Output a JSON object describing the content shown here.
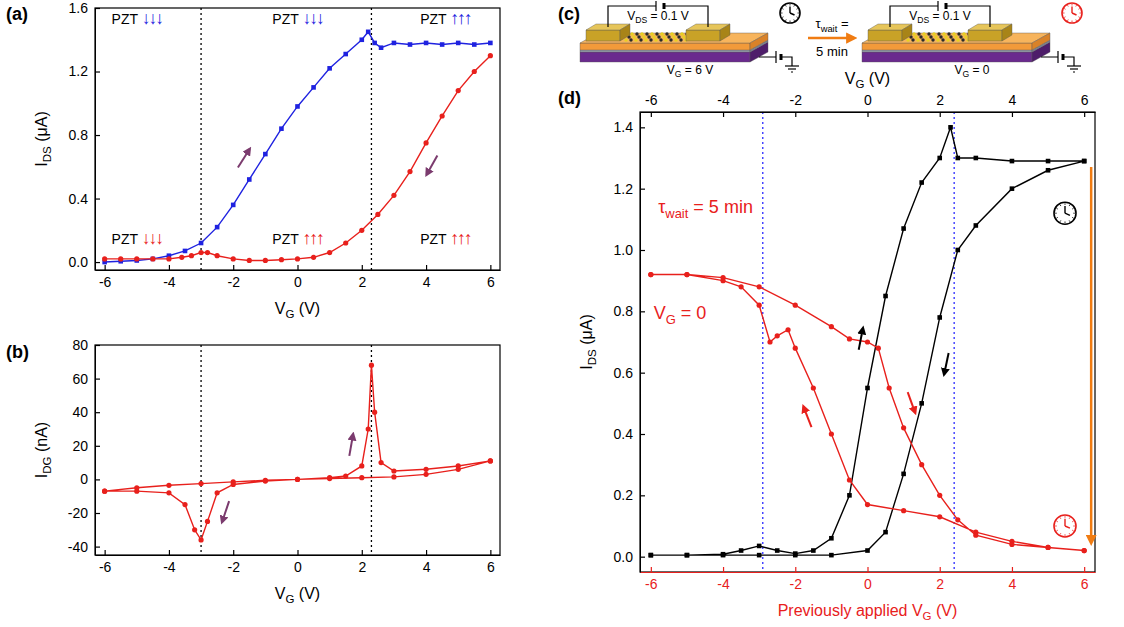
{
  "chart_data": [
    {
      "type": "line",
      "panel": "(a)",
      "xlabel": "VG (V)",
      "ylabel": "IDS (μA)",
      "xlim": [
        -6.3,
        6.3
      ],
      "xticks": [
        -6,
        -4,
        -2,
        0,
        2,
        4,
        6
      ],
      "ylim": [
        -0.05,
        1.6
      ],
      "yticks": [
        {
          "value": 0,
          "label": "0.0"
        },
        {
          "value": 0.4,
          "label": "0.4"
        },
        {
          "value": 0.8,
          "label": "0.8"
        },
        {
          "value": 1.2,
          "label": "1.2"
        },
        {
          "value": 1.6,
          "label": "1.6"
        }
      ],
      "vlines": {
        "x": [
          -3,
          2.3
        ],
        "color": "#000000"
      },
      "series": [
        {
          "color": "#1f22e0",
          "marker": "square",
          "x": [
            -6,
            -5.5,
            -5,
            -4.5,
            -4,
            -3.5,
            -3,
            -2.5,
            -2,
            -1.5,
            -1,
            -0.5,
            0,
            0.5,
            1,
            1.5,
            2,
            2.2,
            2.4,
            2.6,
            3,
            3.5,
            4,
            4.5,
            5,
            5.5,
            6
          ],
          "values": [
            0.0,
            0.005,
            0.01,
            0.02,
            0.04,
            0.07,
            0.12,
            0.22,
            0.36,
            0.52,
            0.68,
            0.84,
            0.98,
            1.1,
            1.22,
            1.31,
            1.4,
            1.45,
            1.38,
            1.35,
            1.38,
            1.37,
            1.38,
            1.37,
            1.38,
            1.37,
            1.38
          ]
        },
        {
          "color": "#e8201c",
          "marker": "circle",
          "x": [
            6,
            5.5,
            5,
            4.5,
            4,
            3.5,
            3,
            2.5,
            2,
            1.5,
            1,
            0.5,
            0,
            -0.5,
            -1,
            -1.5,
            -2,
            -2.5,
            -2.8,
            -3,
            -3.3,
            -3.6,
            -4,
            -4.5,
            -5,
            -5.5,
            -6
          ],
          "values": [
            1.3,
            1.2,
            1.08,
            0.92,
            0.75,
            0.57,
            0.42,
            0.3,
            0.2,
            0.12,
            0.06,
            0.03,
            0.02,
            0.015,
            0.01,
            0.01,
            0.02,
            0.04,
            0.06,
            0.06,
            0.04,
            0.03,
            0.02,
            0.02,
            0.02,
            0.02,
            0.02
          ]
        }
      ],
      "annotations": [
        {
          "text": "PZT ↓↓↓",
          "color": "#1f22e0"
        },
        {
          "text": "PZT ↓↓↓",
          "color": "#1f22e0"
        },
        {
          "text": "PZT ↑↑↑",
          "color": "#1f22e0"
        },
        {
          "text": "PZT ↓↓↓",
          "color": "#e8201c"
        },
        {
          "text": "PZT ↑↑↑",
          "color": "#e8201c"
        },
        {
          "text": "PZT ↑↑↑",
          "color": "#e8201c"
        }
      ]
    },
    {
      "type": "line",
      "panel": "(b)",
      "xlabel": "VG (V)",
      "ylabel": "IDG (nA)",
      "xlim": [
        -6.3,
        6.3
      ],
      "xticks": [
        -6,
        -4,
        -2,
        0,
        2,
        4,
        6
      ],
      "ylim": [
        -45,
        80
      ],
      "yticks": [
        -40,
        -20,
        0,
        20,
        40,
        60,
        80
      ],
      "vlines": {
        "x": [
          -3,
          2.3
        ],
        "color": "#000000"
      },
      "series": [
        {
          "color": "#e8201c",
          "marker": "circle",
          "x": [
            -6,
            -5,
            -4,
            -3,
            -2,
            -1,
            0,
            1,
            1.5,
            2,
            2.2,
            2.3,
            2.4,
            2.6,
            3,
            4,
            5,
            6,
            6,
            5,
            4,
            3,
            2,
            1,
            0,
            -1,
            -2,
            -2.5,
            -2.8,
            -3,
            -3.2,
            -3.5,
            -4,
            -5,
            -6
          ],
          "values": [
            -7,
            -5,
            -3.5,
            -2.5,
            -1.5,
            -0.5,
            0,
            1,
            2,
            8,
            30,
            68,
            40,
            10,
            5,
            6,
            8,
            11,
            11,
            6,
            3,
            1.5,
            1,
            0.5,
            0,
            -1,
            -3,
            -8,
            -25,
            -36,
            -30,
            -15,
            -8,
            -7,
            -7
          ]
        }
      ]
    },
    {
      "type": "line",
      "panel": "(d)",
      "xlabel": "Previously applied VG (V)",
      "x2label": "VG (V)",
      "ylabel": "IDS (μA)",
      "xlim": [
        -6.3,
        6.3
      ],
      "xticks": [
        -6,
        -4,
        -2,
        0,
        2,
        4,
        6
      ],
      "x2lim": [
        -6.3,
        6.3
      ],
      "x2ticks": [
        -6,
        -4,
        -2,
        0,
        2,
        4,
        6
      ],
      "ylim": [
        -0.05,
        1.45
      ],
      "yticks": [
        {
          "value": 0,
          "label": "0.0"
        },
        {
          "value": 0.2,
          "label": "0.2"
        },
        {
          "value": 0.4,
          "label": "0.4"
        },
        {
          "value": 0.6,
          "label": "0.6"
        },
        {
          "value": 0.8,
          "label": "0.8"
        },
        {
          "value": 1.0,
          "label": "1.0"
        },
        {
          "value": 1.2,
          "label": "1.2"
        },
        {
          "value": 1.4,
          "label": "1.4"
        }
      ],
      "vlines": {
        "x": [
          -2.9,
          2.4
        ],
        "color": "#2b2bff"
      },
      "series": [
        {
          "color": "#000000",
          "marker": "square",
          "axis": "x2",
          "x": [
            -6,
            -5,
            -4,
            -3.5,
            -3,
            -2.5,
            -2,
            -1.5,
            -1,
            -0.5,
            0,
            0.5,
            1,
            1.5,
            2,
            2.3,
            2.5,
            3,
            4,
            5,
            6,
            6,
            5,
            4,
            3,
            2.5,
            2,
            1.5,
            1,
            0.5,
            0,
            -1,
            -2,
            -3,
            -4,
            -5,
            -6
          ],
          "values": [
            0.005,
            0.005,
            0.008,
            0.02,
            0.035,
            0.02,
            0.01,
            0.02,
            0.06,
            0.2,
            0.55,
            0.85,
            1.07,
            1.22,
            1.3,
            1.4,
            1.3,
            1.3,
            1.29,
            1.29,
            1.29,
            1.29,
            1.26,
            1.2,
            1.08,
            1.0,
            0.78,
            0.5,
            0.27,
            0.08,
            0.02,
            0.005,
            0.005,
            0.005,
            0.005,
            0.005,
            0.005
          ]
        },
        {
          "color": "#e8201c",
          "marker": "circle",
          "x": [
            6,
            5,
            4,
            3,
            2,
            1,
            0,
            -0.5,
            -1,
            -1.5,
            -2,
            -2.2,
            -2.5,
            -2.7,
            -3,
            -3.5,
            -4,
            -5,
            -6,
            -6,
            -5,
            -4,
            -3,
            -2,
            -1,
            -0.5,
            0,
            0.3,
            0.6,
            1,
            1.5,
            2,
            2.5,
            3,
            4,
            5,
            6
          ],
          "values": [
            0.02,
            0.03,
            0.05,
            0.08,
            0.13,
            0.15,
            0.17,
            0.25,
            0.4,
            0.55,
            0.68,
            0.74,
            0.72,
            0.7,
            0.82,
            0.88,
            0.9,
            0.92,
            0.92,
            0.92,
            0.92,
            0.91,
            0.88,
            0.82,
            0.75,
            0.71,
            0.7,
            0.68,
            0.55,
            0.42,
            0.3,
            0.2,
            0.12,
            0.07,
            0.04,
            0.03,
            0.02
          ]
        }
      ],
      "annotations": [
        {
          "text": "τwait = 5 min",
          "color": "#e8201c"
        },
        {
          "text": "VG = 0",
          "color": "#e8201c"
        }
      ]
    }
  ],
  "schematic": {
    "panel": "(c)",
    "devices": [
      {
        "vds": "VDS = 0.1 V",
        "vg": "VG = 6 V",
        "color": "#000000"
      },
      {
        "vds": "VDS = 0.1 V",
        "vg": "VG = 0",
        "color": "#e8201c"
      }
    ],
    "wait": [
      "τwait =",
      "5 min"
    ]
  }
}
